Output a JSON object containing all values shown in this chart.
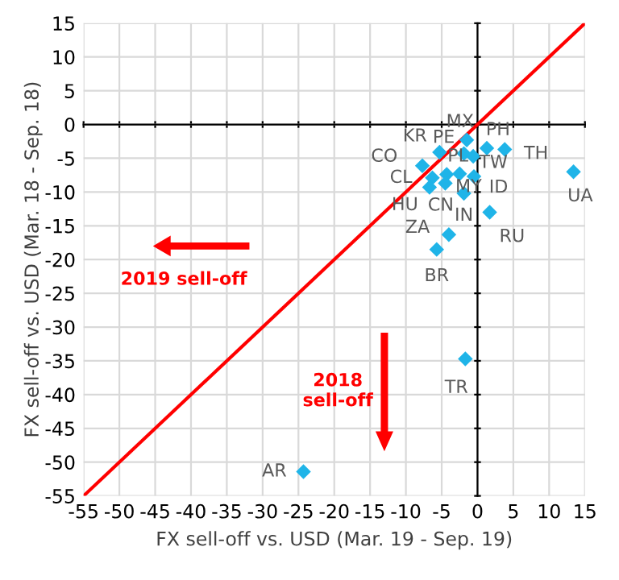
{
  "chart_data": {
    "type": "scatter",
    "xlabel": "FX sell-off vs. USD (Mar. 19 - Sep. 19)",
    "ylabel": "FX sell-off vs. USD (Mar. 18 - Sep. 18)",
    "xlim": [
      -55,
      15
    ],
    "ylim": [
      -55,
      15
    ],
    "xticks": [
      -55,
      -50,
      -45,
      -40,
      -35,
      -30,
      -25,
      -20,
      -15,
      -10,
      -5,
      0,
      5,
      10,
      15
    ],
    "yticks": [
      -55,
      -50,
      -45,
      -40,
      -35,
      -30,
      -25,
      -20,
      -15,
      -10,
      -5,
      0,
      5,
      10,
      15
    ],
    "grid": true,
    "marker": "diamond",
    "legend": false,
    "series": [
      {
        "type": "scatter",
        "color": "#1fb4e8",
        "x": [
          -1.5,
          -1.9,
          -0.6,
          1.3,
          3.8,
          -5.3,
          -7.7,
          -6.3,
          -6.7,
          -4.3,
          -4.5,
          -2.5,
          -0.5,
          -1.9,
          1.7,
          -4.0,
          -5.7,
          -1.7,
          -24.3,
          13.4
        ],
        "values": [
          -2.3,
          -4.3,
          -4.7,
          -3.5,
          -3.7,
          -4.1,
          -6.1,
          -7.9,
          -9.3,
          -7.4,
          -8.7,
          -7.3,
          -7.7,
          -10.2,
          -13.0,
          -16.3,
          -18.5,
          -34.7,
          -51.4,
          -7.0
        ]
      },
      {
        "type": "line",
        "color": "#ff0000",
        "marker": "none",
        "x": [
          -55,
          15
        ],
        "values": [
          -55,
          15
        ]
      }
    ],
    "annotations": [
      {
        "text": "MX",
        "x": -1.5,
        "y": -2.3
      },
      {
        "text": "PE",
        "x": -1.9,
        "y": -4.3
      },
      {
        "text": "TW",
        "x": -0.6,
        "y": -4.7
      },
      {
        "text": "PH",
        "x": 1.3,
        "y": -3.5
      },
      {
        "text": "TH",
        "x": 3.8,
        "y": -3.7
      },
      {
        "text": "KR",
        "x": -5.3,
        "y": -4.1
      },
      {
        "text": "CO",
        "x": -7.7,
        "y": -6.1
      },
      {
        "text": "CL",
        "x": -6.3,
        "y": -7.9
      },
      {
        "text": "HU",
        "x": -6.7,
        "y": -9.3
      },
      {
        "text": "PL",
        "x": -4.3,
        "y": -7.4
      },
      {
        "text": "CN",
        "x": -4.5,
        "y": -8.7
      },
      {
        "text": "MY",
        "x": -2.5,
        "y": -7.3
      },
      {
        "text": "ID",
        "x": -0.5,
        "y": -7.7
      },
      {
        "text": "IN",
        "x": -1.9,
        "y": -10.2
      },
      {
        "text": "RU",
        "x": 1.7,
        "y": -13.0
      },
      {
        "text": "ZA",
        "x": -4.0,
        "y": -16.3
      },
      {
        "text": "BR",
        "x": -5.7,
        "y": -18.5
      },
      {
        "text": "TR",
        "x": -1.7,
        "y": -34.7
      },
      {
        "text": "AR",
        "x": -24.3,
        "y": -51.4
      },
      {
        "text": "UA",
        "x": 13.4,
        "y": -7.0
      },
      "2019 sell-off",
      "2018 sell-off"
    ]
  }
}
